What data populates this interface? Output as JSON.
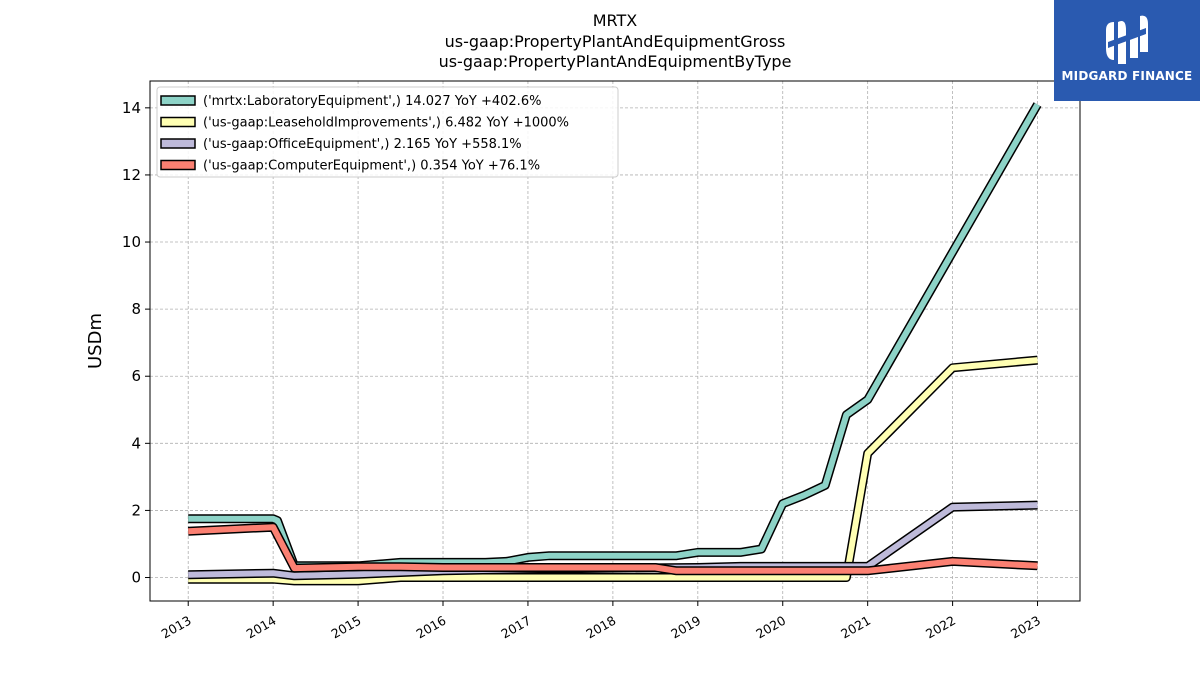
{
  "title_lines": [
    "MRTX",
    "us-gaap:PropertyPlantAndEquipmentGross",
    "us-gaap:PropertyPlantAndEquipmentByType"
  ],
  "logo": {
    "text": "MIDGARD FINANCE",
    "background": "#2a5ab0"
  },
  "chart_data": {
    "type": "line",
    "ylabel": "USDm",
    "xlabel": "",
    "xlim": [
      2012.55,
      2023.5
    ],
    "ylim": [
      -0.7,
      14.8
    ],
    "yticks": [
      0,
      2,
      4,
      6,
      8,
      10,
      12,
      14
    ],
    "xticks": [
      2013,
      2014,
      2015,
      2016,
      2017,
      2018,
      2019,
      2020,
      2021,
      2022,
      2023
    ],
    "xtick_labels": [
      "2013",
      "2014",
      "2015",
      "2016",
      "2017",
      "2018",
      "2019",
      "2020",
      "2021",
      "2022",
      "2023"
    ],
    "grid": true,
    "legend_position": "top-left",
    "series": [
      {
        "name": "('mrtx:LaboratoryEquipment',) 14.027 YoY +402.6%",
        "color": "#8dd3c7",
        "x": [
          2013.0,
          2014.0,
          2014.05,
          2014.25,
          2014.5,
          2015.0,
          2015.5,
          2016.0,
          2016.5,
          2016.75,
          2017.0,
          2017.25,
          2017.5,
          2018.0,
          2018.5,
          2018.75,
          2019.0,
          2019.5,
          2019.75,
          2020.0,
          2020.25,
          2020.5,
          2020.75,
          2021.0,
          2022.0,
          2023.0
        ],
        "y": [
          1.75,
          1.75,
          1.7,
          0.35,
          0.35,
          0.35,
          0.45,
          0.45,
          0.45,
          0.48,
          0.6,
          0.65,
          0.65,
          0.65,
          0.65,
          0.65,
          0.75,
          0.75,
          0.85,
          2.2,
          2.45,
          2.75,
          4.85,
          5.3,
          9.7,
          14.1
        ]
      },
      {
        "name": "('us-gaap:LeaseholdImprovements',) 6.482 YoY +1000%",
        "color": "#ffffb3",
        "x": [
          2013.0,
          2014.0,
          2014.25,
          2015.0,
          2015.5,
          2016.0,
          2017.0,
          2018.0,
          2019.0,
          2020.0,
          2020.75,
          2021.0,
          2022.0,
          2023.0
        ],
        "y": [
          -0.05,
          -0.05,
          -0.1,
          -0.1,
          0.0,
          0.0,
          0.0,
          0.0,
          0.0,
          0.0,
          0.0,
          3.7,
          6.25,
          6.48
        ]
      },
      {
        "name": "('us-gaap:OfficeEquipment',) 2.165 YoY +558.1%",
        "color": "#bebada",
        "x": [
          2013.0,
          2014.0,
          2014.25,
          2015.0,
          2015.5,
          2016.0,
          2017.0,
          2018.0,
          2019.0,
          2019.5,
          2020.0,
          2020.75,
          2021.0,
          2022.0,
          2023.0
        ],
        "y": [
          0.08,
          0.13,
          0.05,
          0.1,
          0.15,
          0.2,
          0.25,
          0.28,
          0.3,
          0.33,
          0.33,
          0.33,
          0.33,
          2.1,
          2.16
        ]
      },
      {
        "name": "('us-gaap:ComputerEquipment',) 0.354 YoY +76.1%",
        "color": "#fb8072",
        "x": [
          2013.0,
          2014.0,
          2014.25,
          2015.0,
          2015.5,
          2016.0,
          2017.0,
          2018.0,
          2018.5,
          2018.75,
          2019.0,
          2020.0,
          2021.0,
          2022.0,
          2023.0
        ],
        "y": [
          1.38,
          1.5,
          0.28,
          0.32,
          0.32,
          0.3,
          0.3,
          0.3,
          0.3,
          0.2,
          0.2,
          0.2,
          0.2,
          0.48,
          0.35
        ]
      }
    ]
  }
}
